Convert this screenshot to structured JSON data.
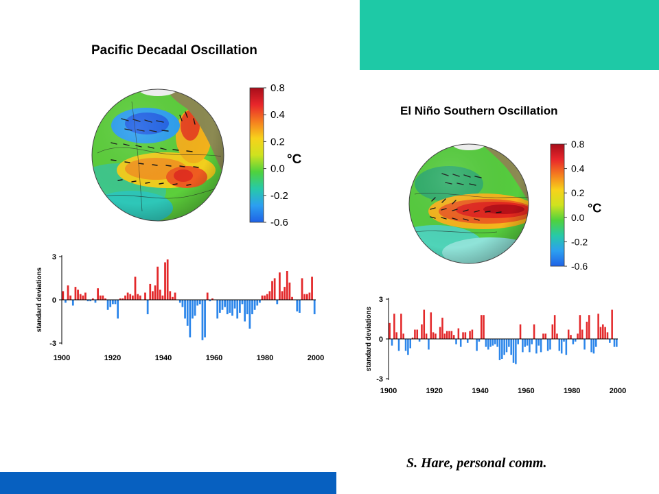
{
  "colors": {
    "accent_teal": "#1ec9a6",
    "accent_blue": "#0760c0",
    "positive_bar": "#e3282a",
    "negative_bar": "#2c86ea",
    "land": "#8c8a52",
    "ice": "#f4f4f4"
  },
  "credit": "S. Hare, personal comm.",
  "chart_data": [
    {
      "id": "pdo",
      "type": "map-with-colorbar+bar",
      "title": "Pacific Decadal Oscillation",
      "colorbar": {
        "unit": "°C",
        "ticks": [
          "0.8",
          "0.4",
          "0.2",
          "0.0",
          "-0.2",
          "-0.6"
        ],
        "colors": [
          "#a80d1a",
          "#e8262b",
          "#f57d1f",
          "#f7d21b",
          "#cfe21f",
          "#4fd23d",
          "#27c9a8",
          "#2c9ff0",
          "#1f62e6"
        ]
      },
      "ylabel": "standard deviations",
      "ylim": [
        -3,
        3
      ],
      "yticks": [
        "3",
        "0",
        "-3"
      ],
      "xticks": [
        "1900",
        "1920",
        "1940",
        "1960",
        "1980",
        "2000"
      ],
      "x_start": 1900,
      "x_end": 2000,
      "values": [
        0.6,
        -0.2,
        1.0,
        0.3,
        -0.4,
        0.9,
        0.7,
        0.4,
        0.3,
        0.5,
        -0.1,
        -0.1,
        0.1,
        -0.2,
        0.8,
        0.3,
        0.3,
        0.1,
        -0.7,
        -0.5,
        -0.3,
        -0.3,
        -1.3,
        0.1,
        0.1,
        0.3,
        0.5,
        0.4,
        0.3,
        1.6,
        0.4,
        0.3,
        0.0,
        0.5,
        -1.0,
        1.1,
        0.6,
        1.0,
        2.3,
        0.7,
        0.3,
        2.6,
        2.8,
        0.6,
        0.2,
        0.5,
        0.0,
        -0.2,
        -0.5,
        -1.3,
        -1.8,
        -2.6,
        -1.3,
        -1.1,
        -0.4,
        -0.3,
        -2.8,
        -2.6,
        0.5,
        -0.1,
        0.1,
        0.0,
        -1.3,
        -0.9,
        -0.7,
        -0.5,
        -1.0,
        -0.9,
        -1.1,
        -0.6,
        -1.3,
        -0.9,
        -0.3,
        -1.5,
        -1.0,
        -2.0,
        -1.0,
        -0.7,
        -0.4,
        -0.2,
        0.3,
        0.3,
        0.4,
        0.6,
        1.3,
        1.5,
        -0.3,
        1.9,
        0.6,
        0.9,
        2.0,
        1.2,
        0.2,
        0.0,
        -0.8,
        -0.9,
        1.5,
        0.4,
        0.4,
        0.5,
        1.6,
        -1.0
      ]
    },
    {
      "id": "enso",
      "type": "map-with-colorbar+bar",
      "title": "El Niño Southern Oscillation",
      "colorbar": {
        "unit": "°C",
        "ticks": [
          "0.8",
          "0.4",
          "0.2",
          "0.0",
          "-0.2",
          "-0.6"
        ],
        "colors": [
          "#a80d1a",
          "#e8262b",
          "#f57d1f",
          "#f7d21b",
          "#cfe21f",
          "#4fd23d",
          "#27c9a8",
          "#2c9ff0",
          "#1f62e6"
        ]
      },
      "ylabel": "standard deviations",
      "ylim": [
        -3,
        3
      ],
      "yticks": [
        "3",
        "0",
        "-3"
      ],
      "xticks": [
        "1900",
        "1920",
        "1940",
        "1960",
        "1980",
        "2000"
      ],
      "x_start": 1900,
      "x_end": 2000,
      "values": [
        1.2,
        -0.5,
        1.9,
        0.5,
        -0.9,
        1.9,
        0.4,
        -0.9,
        -1.2,
        -0.7,
        0.1,
        0.7,
        0.7,
        -0.2,
        1.1,
        2.2,
        0.4,
        -0.8,
        2.0,
        0.5,
        0.4,
        0.0,
        0.9,
        1.6,
        0.4,
        0.6,
        0.6,
        0.6,
        0.3,
        -0.4,
        0.8,
        -0.6,
        0.5,
        0.5,
        -0.3,
        0.6,
        0.7,
        0.0,
        -0.9,
        -0.2,
        1.8,
        1.8,
        -0.6,
        -0.8,
        -0.6,
        -0.5,
        -0.4,
        -0.6,
        -1.6,
        -1.5,
        -1.2,
        -1.0,
        -0.6,
        -1.2,
        -1.8,
        -1.9,
        -0.4,
        1.1,
        -1.0,
        -0.6,
        -0.5,
        -1.0,
        -0.4,
        1.1,
        -1.1,
        -0.5,
        -1.0,
        0.4,
        0.4,
        -0.9,
        -0.8,
        1.1,
        1.8,
        0.4,
        -0.9,
        -1.1,
        -0.2,
        -1.2,
        0.7,
        0.3,
        -0.4,
        -0.2,
        0.4,
        1.8,
        0.7,
        -0.8,
        1.3,
        1.8,
        -1.0,
        -1.1,
        -0.6,
        1.9,
        0.9,
        1.1,
        0.9,
        0.5,
        -0.3,
        2.2,
        -0.6,
        -0.6
      ]
    }
  ]
}
